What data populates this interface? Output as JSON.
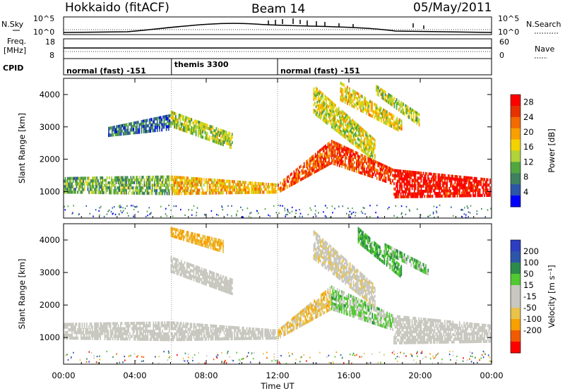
{
  "header": {
    "radar": "Hokkaido (fitACF)",
    "beam": "Beam 14",
    "date": "05/May/2011"
  },
  "top_panels": {
    "nsky_label": "N.Sky",
    "nsearch_label": "N.Search",
    "noise_ticks": [
      "10^5",
      "10^0"
    ],
    "freq_label_1": "Freq.",
    "freq_label_2": "[MHz]",
    "freq_ticks": [
      "18",
      "8"
    ],
    "nave_label": "Nave",
    "nave_ticks": [
      "60",
      "0"
    ],
    "cpid_label": "CPID",
    "cpid_segments": [
      {
        "label": "normal (fast) -151",
        "start": 0,
        "end": 6.05
      },
      {
        "label": "themis 3300",
        "start": 6.05,
        "end": 12.0
      },
      {
        "label": "normal (fast) -151",
        "start": 12.0,
        "end": 24
      }
    ]
  },
  "colors": {
    "power_scale": [
      "#0000ff",
      "#2d55a8",
      "#3f8060",
      "#52a640",
      "#b0d23a",
      "#f2d200",
      "#f7a000",
      "#f26a00",
      "#e63200",
      "#ff0000"
    ],
    "velocity_scale": [
      "#ff0000",
      "#f25a00",
      "#f7a000",
      "#e8c24a",
      "#c8c8c0",
      "#c8c8c0",
      "#52c832",
      "#2d8a4a",
      "#2d55a8",
      "#2e3ec0"
    ]
  },
  "chart_data": [
    {
      "type": "heatmap",
      "name": "power",
      "ylabel": "Slant Range [km]",
      "xlabel": "",
      "x_ticks": [
        "00:00",
        "04:00",
        "08:00",
        "12:00",
        "16:00",
        "20:00",
        "00:00"
      ],
      "x_tick_values": [
        0,
        4,
        8,
        12,
        16,
        20,
        24
      ],
      "xlim": [
        0,
        24
      ],
      "ylim": [
        180,
        4500
      ],
      "y_ticks": [
        1000,
        2000,
        3000,
        4000
      ],
      "colorbar": {
        "label": "Power [dB]",
        "ticks": [
          "4",
          "8",
          "12",
          "16",
          "20",
          "24",
          "28"
        ],
        "range": [
          0,
          30
        ]
      },
      "bands": [
        {
          "x": [
            0.0,
            6.0
          ],
          "y_lo": [
            950,
            900
          ],
          "y_hi": [
            1450,
            1500
          ],
          "level": 0.35
        },
        {
          "x": [
            6.0,
            12.0
          ],
          "y_lo": [
            900,
            950
          ],
          "y_hi": [
            1500,
            1250
          ],
          "level": 0.6
        },
        {
          "x": [
            12.0,
            15.0
          ],
          "y_lo": [
            950,
            1850
          ],
          "y_hi": [
            1250,
            2600
          ],
          "level": 0.8
        },
        {
          "x": [
            15.0,
            18.5
          ],
          "y_lo": [
            1850,
            1200
          ],
          "y_hi": [
            2600,
            1700
          ],
          "level": 0.85
        },
        {
          "x": [
            18.5,
            24.0
          ],
          "y_lo": [
            800,
            850
          ],
          "y_hi": [
            1700,
            1400
          ],
          "level": 0.95
        },
        {
          "x": [
            6.0,
            9.5
          ],
          "y_lo": [
            3000,
            2300
          ],
          "y_hi": [
            3500,
            2800
          ],
          "level": 0.45
        },
        {
          "x": [
            2.5,
            6.0
          ],
          "y_lo": [
            2700,
            2900
          ],
          "y_hi": [
            3000,
            3400
          ],
          "level": 0.2
        },
        {
          "x": [
            14.0,
            17.5
          ],
          "y_lo": [
            3400,
            1900
          ],
          "y_hi": [
            4300,
            2600
          ],
          "level": 0.5
        },
        {
          "x": [
            15.5,
            19.0
          ],
          "y_lo": [
            3800,
            2800
          ],
          "y_hi": [
            4400,
            3200
          ],
          "level": 0.55
        },
        {
          "x": [
            17.5,
            20.0
          ],
          "y_lo": [
            4000,
            3000
          ],
          "y_hi": [
            4300,
            3400
          ],
          "level": 0.45
        }
      ]
    },
    {
      "type": "heatmap",
      "name": "velocity",
      "ylabel": "Slant Range [km]",
      "xlabel": "Time UT",
      "x_ticks": [
        "00:00",
        "04:00",
        "08:00",
        "12:00",
        "16:00",
        "20:00",
        "00:00"
      ],
      "x_tick_values": [
        0,
        4,
        8,
        12,
        16,
        20,
        24
      ],
      "xlim": [
        0,
        24
      ],
      "ylim": [
        180,
        4500
      ],
      "y_ticks": [
        1000,
        2000,
        3000,
        4000
      ],
      "colorbar": {
        "label": "Velocity [m s⁻¹]",
        "ticks": [
          "200",
          "100",
          "50",
          "15",
          "-15",
          "-50",
          "-100",
          "-200"
        ],
        "range": [
          -250,
          250
        ]
      },
      "bands": [
        {
          "x": [
            0.0,
            6.0
          ],
          "y_lo": [
            950,
            900
          ],
          "y_hi": [
            1450,
            1500
          ],
          "level": 0.5
        },
        {
          "x": [
            6.0,
            12.0
          ],
          "y_lo": [
            900,
            950
          ],
          "y_hi": [
            1500,
            1250
          ],
          "level": 0.5
        },
        {
          "x": [
            12.0,
            15.0
          ],
          "y_lo": [
            950,
            1850
          ],
          "y_hi": [
            1250,
            2600
          ],
          "level": 0.35
        },
        {
          "x": [
            15.0,
            18.5
          ],
          "y_lo": [
            1850,
            1200
          ],
          "y_hi": [
            2600,
            1700
          ],
          "level": 0.62
        },
        {
          "x": [
            18.5,
            24.0
          ],
          "y_lo": [
            800,
            850
          ],
          "y_hi": [
            1700,
            1400
          ],
          "level": 0.5
        },
        {
          "x": [
            6.0,
            9.5
          ],
          "y_lo": [
            3000,
            2300
          ],
          "y_hi": [
            3500,
            2800
          ],
          "level": 0.5
        },
        {
          "x": [
            6.0,
            9.0
          ],
          "y_lo": [
            4100,
            3600
          ],
          "y_hi": [
            4400,
            4000
          ],
          "level": 0.3
        },
        {
          "x": [
            14.0,
            17.5
          ],
          "y_lo": [
            3400,
            1900
          ],
          "y_hi": [
            4300,
            2600
          ],
          "level": 0.45
        },
        {
          "x": [
            16.5,
            19.0
          ],
          "y_lo": [
            3900,
            2800
          ],
          "y_hi": [
            4400,
            3200
          ],
          "level": 0.68
        },
        {
          "x": [
            18.0,
            20.5
          ],
          "y_lo": [
            3600,
            2900
          ],
          "y_hi": [
            3900,
            3200
          ],
          "level": 0.65
        }
      ]
    }
  ]
}
